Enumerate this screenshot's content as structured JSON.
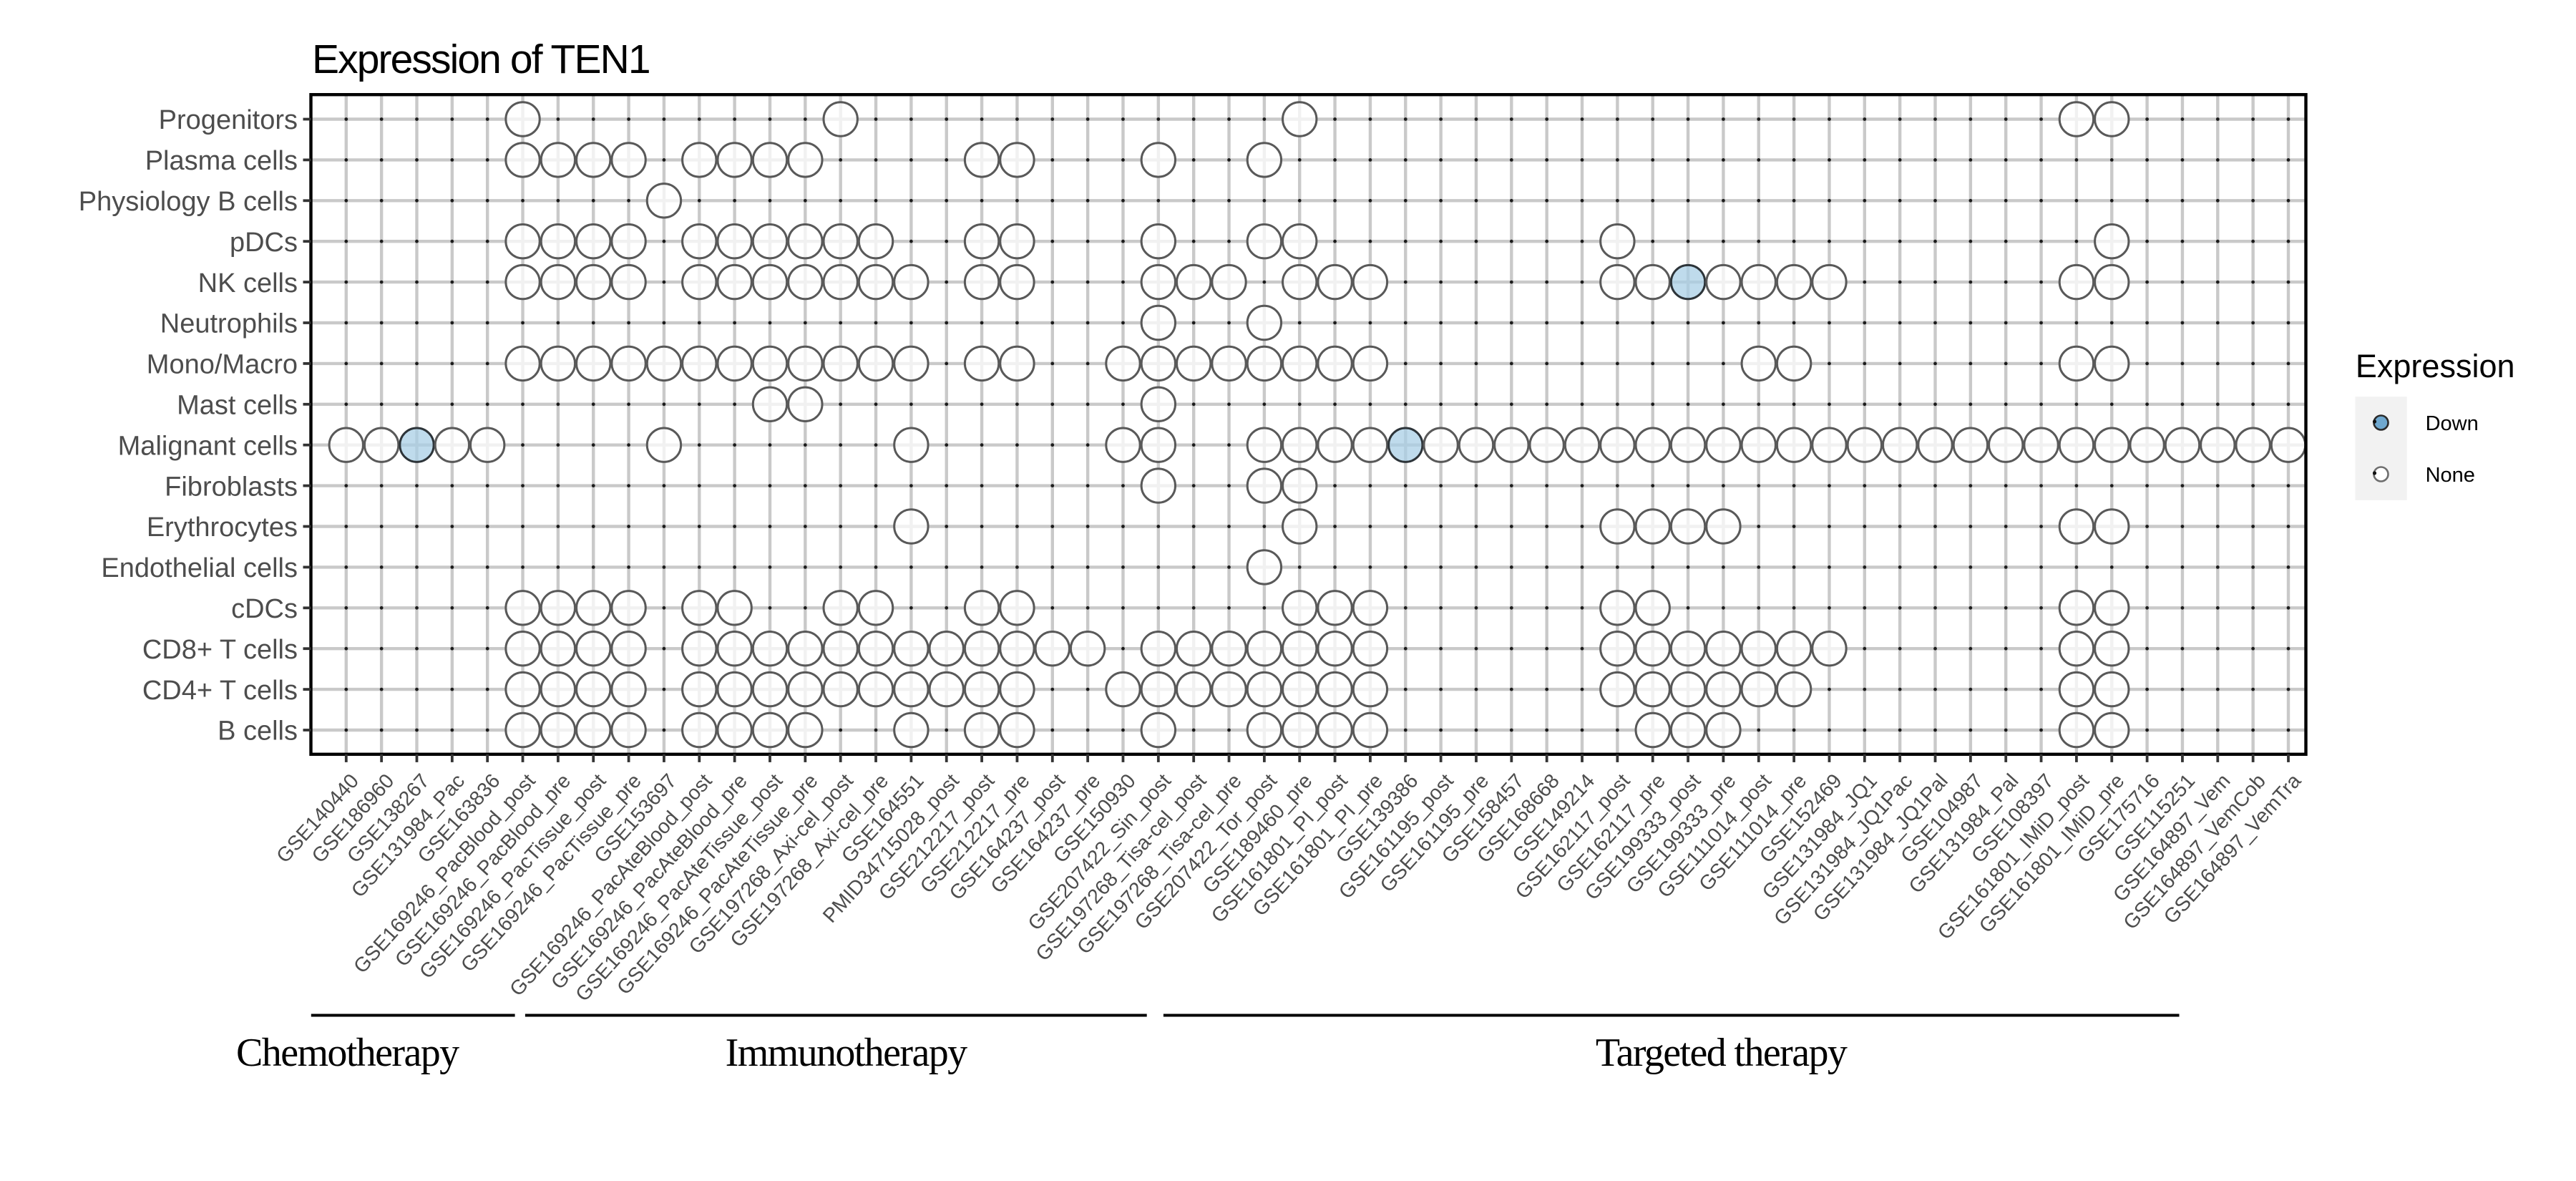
{
  "chart_data": {
    "type": "scatter",
    "subtype": "dot-matrix",
    "title": "Expression of TEN1",
    "x_categories": [
      "GSE140440",
      "GSE186960",
      "GSE138267",
      "GSE131984_Pac",
      "GSE163836",
      "GSE169246_PacBlood_post",
      "GSE169246_PacBlood_pre",
      "GSE169246_PacTissue_post",
      "GSE169246_PacTissue_pre",
      "GSE153697",
      "GSE169246_PacAteBlood_post",
      "GSE169246_PacAteBlood_pre",
      "GSE169246_PacAteTissue_post",
      "GSE169246_PacAteTissue_pre",
      "GSE197268_Axi-cel_post",
      "GSE197268_Axi-cel_pre",
      "GSE164551",
      "PMID34715028_post",
      "GSE212217_post",
      "GSE212217_pre",
      "GSE164237_post",
      "GSE164237_pre",
      "GSE150930",
      "GSE207422_Sin_post",
      "GSE197268_Tisa-cel_post",
      "GSE197268_Tisa-cel_pre",
      "GSE207422_Tor_post",
      "GSE189460_pre",
      "GSE161801_PI_post",
      "GSE161801_PI_pre",
      "GSE139386",
      "GSE161195_post",
      "GSE161195_pre",
      "GSE158457",
      "GSE168668",
      "GSE149214",
      "GSE162117_post",
      "GSE162117_pre",
      "GSE199333_post",
      "GSE199333_pre",
      "GSE111014_post",
      "GSE111014_pre",
      "GSE152469",
      "GSE131984_JQ1",
      "GSE131984_JQ1Pac",
      "GSE131984_JQ1Pal",
      "GSE104987",
      "GSE131984_Pal",
      "GSE108397",
      "GSE161801_IMiD_post",
      "GSE161801_IMiD_pre",
      "GSE175716",
      "GSE115251",
      "GSE164897_Vem",
      "GSE164897_VemCob",
      "GSE164897_VemTra"
    ],
    "y_categories": [
      "Progenitors",
      "Plasma cells",
      "Physiology B cells",
      "pDCs",
      "NK cells",
      "Neutrophils",
      "Mono/Macro",
      "Mast cells",
      "Malignant cells",
      "Fibroblasts",
      "Erythrocytes",
      "Endothelial cells",
      "cDCs",
      "CD8+ T cells",
      "CD4+ T cells",
      "B cells"
    ],
    "cells": [
      {
        "row": "Progenitors",
        "none_cols": [
          6,
          15,
          28,
          50,
          51
        ],
        "down_cols": []
      },
      {
        "row": "Plasma cells",
        "none_cols": [
          6,
          7,
          8,
          9,
          11,
          12,
          13,
          14,
          19,
          20,
          24,
          27
        ],
        "down_cols": []
      },
      {
        "row": "Physiology B cells",
        "none_cols": [
          10
        ],
        "down_cols": []
      },
      {
        "row": "pDCs",
        "none_cols": [
          6,
          7,
          8,
          9,
          11,
          12,
          13,
          14,
          15,
          16,
          19,
          20,
          24,
          27,
          28,
          37,
          51
        ],
        "down_cols": []
      },
      {
        "row": "NK cells",
        "none_cols": [
          6,
          7,
          8,
          9,
          11,
          12,
          13,
          14,
          15,
          16,
          17,
          19,
          20,
          24,
          25,
          26,
          28,
          29,
          30,
          37,
          38,
          40,
          41,
          42,
          43,
          50,
          51
        ],
        "down_cols": [
          39
        ]
      },
      {
        "row": "Neutrophils",
        "none_cols": [
          24,
          27
        ],
        "down_cols": []
      },
      {
        "row": "Mono/Macro",
        "none_cols": [
          6,
          7,
          8,
          9,
          10,
          11,
          12,
          13,
          14,
          15,
          16,
          17,
          19,
          20,
          23,
          24,
          25,
          26,
          27,
          28,
          29,
          30,
          41,
          42,
          50,
          51
        ],
        "down_cols": []
      },
      {
        "row": "Mast cells",
        "none_cols": [
          13,
          14,
          24
        ],
        "down_cols": []
      },
      {
        "row": "Malignant cells",
        "none_cols": [
          1,
          2,
          4,
          5,
          10,
          17,
          23,
          24,
          27,
          28,
          29,
          30,
          32,
          33,
          34,
          35,
          36,
          37,
          38,
          39,
          40,
          41,
          42,
          43,
          44,
          45,
          46,
          47,
          48,
          49,
          50,
          51,
          52,
          53,
          54,
          55,
          56
        ],
        "down_cols": [
          3,
          31
        ]
      },
      {
        "row": "Fibroblasts",
        "none_cols": [
          24,
          27,
          28
        ],
        "down_cols": []
      },
      {
        "row": "Erythrocytes",
        "none_cols": [
          17,
          28,
          37,
          38,
          39,
          40,
          50,
          51
        ],
        "down_cols": []
      },
      {
        "row": "Endothelial cells",
        "none_cols": [
          27
        ],
        "down_cols": []
      },
      {
        "row": "cDCs",
        "none_cols": [
          6,
          7,
          8,
          9,
          11,
          12,
          15,
          16,
          19,
          20,
          28,
          29,
          30,
          37,
          38,
          50,
          51
        ],
        "down_cols": []
      },
      {
        "row": "CD8+ T cells",
        "none_cols": [
          6,
          7,
          8,
          9,
          11,
          12,
          13,
          14,
          15,
          16,
          17,
          18,
          19,
          20,
          21,
          22,
          24,
          25,
          26,
          27,
          28,
          29,
          30,
          37,
          38,
          39,
          40,
          41,
          42,
          43,
          50,
          51
        ],
        "down_cols": []
      },
      {
        "row": "CD4+ T cells",
        "none_cols": [
          6,
          7,
          8,
          9,
          11,
          12,
          13,
          14,
          15,
          16,
          17,
          18,
          19,
          20,
          23,
          24,
          25,
          26,
          27,
          28,
          29,
          30,
          37,
          38,
          39,
          40,
          41,
          42,
          50,
          51
        ],
        "down_cols": []
      },
      {
        "row": "B cells",
        "none_cols": [
          6,
          7,
          8,
          9,
          11,
          12,
          13,
          14,
          17,
          19,
          20,
          24,
          27,
          28,
          29,
          30,
          38,
          39,
          40,
          50,
          51
        ],
        "down_cols": []
      }
    ],
    "groups": [
      {
        "label": "Chemotherapy",
        "col_start": 1,
        "col_end": 5
      },
      {
        "label": "Immunotherapy",
        "col_start": 6,
        "col_end": 23
      },
      {
        "label": "Targeted therapy",
        "col_start": 24,
        "col_end": 56
      }
    ],
    "legend": {
      "title": "Expression",
      "items": [
        {
          "label": "Down"
        },
        {
          "label": "None"
        }
      ]
    },
    "colors": {
      "down_fill": "#a8cfe5",
      "down_stroke": "#2d3439",
      "none_fill": "#ffffff",
      "none_stroke": "#595959",
      "grid": "#c9c9c9",
      "dot": "#1c1c1c",
      "border": "#000000",
      "tick": "#333333",
      "axis_text": "#4d4d4d",
      "legend_key_bg": "#f2f2f2",
      "legend_down_fill": "#6fa8cf"
    }
  }
}
